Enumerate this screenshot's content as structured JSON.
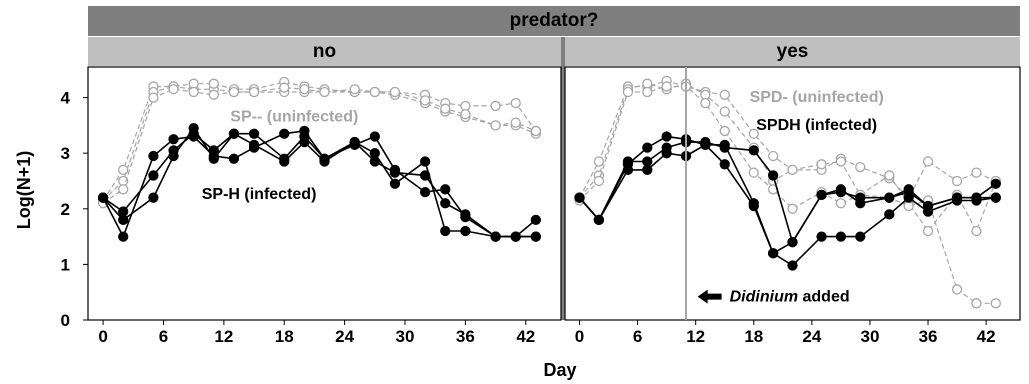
{
  "facet_title": "predator?",
  "facets": [
    "no",
    "yes"
  ],
  "ylabel": "Log(N+1)",
  "xlabel": "Day",
  "chart_data": {
    "type": "line",
    "x_ticks": [
      0,
      6,
      12,
      18,
      24,
      30,
      36,
      42
    ],
    "y_ticks": [
      0,
      1,
      2,
      3,
      4
    ],
    "xlim": [
      -1.5,
      45.5
    ],
    "ylim": [
      0,
      4.55
    ],
    "panels": [
      {
        "facet": "no",
        "annotations": [
          {
            "text": "SP-- (uninfected)",
            "color": "#a6a6a6",
            "x": 19,
            "y": 3.57
          },
          {
            "text": "SP-H (infected)",
            "color": "#000000",
            "x": 15.5,
            "y": 2.18
          }
        ],
        "series": [
          {
            "infected": false,
            "x": [
              0,
              2,
              5,
              7,
              9,
              11,
              13,
              15,
              18,
              20,
              22,
              25,
              27,
              29,
              32,
              34,
              36,
              39,
              41,
              43
            ],
            "y": [
              2.15,
              2.7,
              4.2,
              4.2,
              4.15,
              4.15,
              4.1,
              4.1,
              4.1,
              4.1,
              4.1,
              4.1,
              4.1,
              4.1,
              4.05,
              3.9,
              3.85,
              3.85,
              3.9,
              3.4
            ]
          },
          {
            "infected": false,
            "x": [
              0,
              2,
              5,
              7,
              9,
              11,
              13,
              15,
              18,
              20,
              22,
              25,
              27,
              29,
              32,
              34,
              36,
              39,
              41,
              43
            ],
            "y": [
              2.15,
              2.5,
              4.1,
              4.2,
              4.25,
              4.25,
              4.15,
              4.15,
              4.28,
              4.2,
              4.15,
              4.1,
              4.1,
              4.05,
              3.9,
              3.75,
              3.65,
              3.5,
              3.5,
              3.35
            ]
          },
          {
            "infected": false,
            "x": [
              0,
              2,
              5,
              7,
              9,
              11,
              13,
              15,
              18,
              20,
              22,
              25,
              27,
              29,
              32,
              34,
              36,
              39,
              41,
              43
            ],
            "y": [
              2.1,
              2.35,
              4.0,
              4.15,
              4.1,
              4.05,
              4.1,
              4.1,
              4.18,
              4.15,
              4.1,
              4.15,
              4.1,
              4.1,
              3.95,
              3.8,
              3.7,
              3.5,
              3.55,
              3.4
            ]
          },
          {
            "infected": true,
            "x": [
              0,
              2,
              5,
              7,
              9,
              11,
              13,
              15,
              18,
              20,
              22,
              25,
              27,
              29,
              32,
              34,
              36,
              39,
              41,
              43
            ],
            "y": [
              2.2,
              1.95,
              2.6,
              3.05,
              3.35,
              3.05,
              3.35,
              3.35,
              2.9,
              3.3,
              2.9,
              3.15,
              3.3,
              2.7,
              2.3,
              2.35,
              1.85,
              1.5,
              1.5,
              1.5
            ]
          },
          {
            "infected": true,
            "x": [
              0,
              2,
              5,
              7,
              9,
              11,
              13,
              15,
              18,
              20,
              22,
              25,
              27,
              29,
              32,
              34,
              36,
              39,
              41,
              43
            ],
            "y": [
              2.2,
              1.5,
              2.95,
              3.25,
              3.3,
              2.95,
              2.9,
              3.1,
              3.35,
              3.4,
              2.9,
              3.2,
              3.0,
              2.45,
              2.85,
              1.6,
              1.6,
              1.5,
              1.5,
              1.8
            ]
          },
          {
            "infected": true,
            "x": [
              0,
              2,
              5,
              7,
              9,
              11,
              13,
              15,
              18,
              20,
              22,
              25,
              27,
              29,
              32,
              34,
              36,
              39,
              41,
              43
            ],
            "y": [
              2.2,
              1.8,
              2.2,
              2.95,
              3.45,
              2.9,
              3.35,
              3.15,
              2.85,
              3.2,
              2.85,
              3.2,
              2.85,
              2.65,
              2.6,
              2.1,
              1.9,
              1.5,
              1.5,
              1.5
            ]
          }
        ]
      },
      {
        "facet": "yes",
        "vline_x": 11,
        "annotations": [
          {
            "text": "SPD- (uninfected)",
            "color": "#a6a6a6",
            "x": 24.5,
            "y": 3.92
          },
          {
            "text": "SPDH (infected)",
            "color": "#000000",
            "x": 24.5,
            "y": 3.42
          }
        ],
        "arrow_label": {
          "text": "Didinium",
          "suffix": " added",
          "x": 12.2,
          "y": 0.42
        },
        "series": [
          {
            "infected": false,
            "x": [
              0,
              2,
              5,
              7,
              9,
              11,
              13,
              15,
              18,
              20,
              22,
              25,
              27,
              29,
              32,
              34,
              36,
              39,
              41,
              43
            ],
            "y": [
              2.2,
              2.85,
              4.2,
              4.2,
              4.3,
              4.2,
              4.1,
              4.05,
              3.35,
              2.95,
              2.7,
              2.7,
              2.9,
              2.75,
              2.55,
              2.2,
              2.85,
              2.5,
              2.65,
              2.5
            ]
          },
          {
            "infected": false,
            "x": [
              0,
              2,
              5,
              7,
              9,
              11,
              13,
              15,
              18,
              20,
              22,
              25,
              27,
              29,
              32,
              34,
              36,
              39,
              41,
              43
            ],
            "y": [
              2.2,
              2.6,
              4.15,
              4.25,
              4.15,
              4.25,
              4.05,
              3.75,
              3.1,
              2.5,
              2.7,
              2.8,
              2.85,
              2.25,
              2.6,
              2.1,
              1.6,
              2.25,
              1.6,
              2.5
            ]
          },
          {
            "infected": false,
            "x": [
              0,
              2,
              5,
              7,
              9,
              11,
              13,
              15,
              18,
              20,
              22,
              25,
              27,
              29,
              32,
              34,
              36,
              39,
              41,
              43
            ],
            "y": [
              2.15,
              2.5,
              4.1,
              4.1,
              4.2,
              4.2,
              3.9,
              3.4,
              2.65,
              2.35,
              2.0,
              2.3,
              2.1,
              2.25,
              2.2,
              2.05,
              2.15,
              0.55,
              0.3,
              0.3
            ]
          },
          {
            "infected": true,
            "x": [
              0,
              2,
              5,
              7,
              9,
              11,
              13,
              15,
              18,
              20,
              22,
              25,
              27,
              29,
              32,
              34,
              36,
              39,
              41,
              43
            ],
            "y": [
              2.2,
              1.8,
              2.8,
              3.1,
              3.3,
              3.25,
              3.15,
              3.15,
              2.1,
              1.2,
              1.4,
              2.25,
              2.3,
              2.2,
              2.2,
              2.3,
              2.05,
              2.2,
              2.2,
              2.45
            ]
          },
          {
            "infected": true,
            "x": [
              0,
              2,
              5,
              7,
              9,
              11,
              13,
              15,
              18,
              20,
              22,
              25,
              27,
              29,
              32,
              34,
              36,
              39,
              41,
              43
            ],
            "y": [
              2.2,
              1.8,
              2.7,
              2.7,
              3.0,
              2.95,
              3.15,
              2.8,
              2.05,
              1.2,
              0.98,
              1.5,
              1.5,
              1.5,
              1.9,
              2.2,
              1.95,
              2.15,
              2.15,
              2.2
            ]
          },
          {
            "infected": true,
            "x": [
              0,
              2,
              5,
              7,
              9,
              11,
              13,
              15,
              18,
              20,
              22,
              25,
              27,
              29,
              32,
              34,
              36,
              39,
              41,
              43
            ],
            "y": [
              2.2,
              1.8,
              2.85,
              2.85,
              3.1,
              3.2,
              3.2,
              3.1,
              3.05,
              2.6,
              1.4,
              2.25,
              2.35,
              2.1,
              2.2,
              2.35,
              2.05,
              2.2,
              2.2,
              2.2
            ]
          }
        ]
      }
    ],
    "colors": {
      "infected": "#000000",
      "uninfected": "#a6a6a6",
      "vline": "#a6a6a6",
      "strip_top": "#7f7f7f",
      "strip_sub": "#bfbfbf"
    }
  }
}
